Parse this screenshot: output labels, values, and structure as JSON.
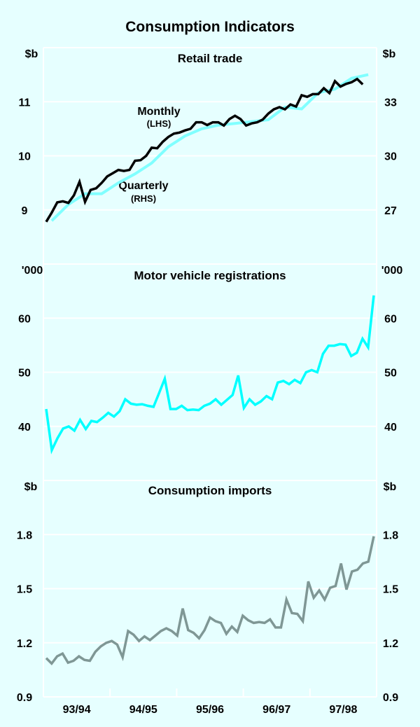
{
  "chart_data": {
    "type": "line",
    "title": "Consumption Indicators",
    "x_categories": [
      "93/94",
      "94/95",
      "95/96",
      "96/97",
      "97/98"
    ],
    "x_start": "Jul 1993",
    "x_frequency": "monthly",
    "grid": true,
    "panels": [
      {
        "title": "Retail trade",
        "left_unit": "$b",
        "right_unit": "$b",
        "left_ylim": [
          8,
          12
        ],
        "right_ylim": [
          24,
          36
        ],
        "left_ticks": [
          "9",
          "10",
          "11"
        ],
        "right_ticks": [
          "27",
          "30",
          "33"
        ],
        "annotations": [
          {
            "label": "Monthly",
            "sub": "(LHS)"
          },
          {
            "label": "Quarterly",
            "sub": "(RHS)"
          }
        ],
        "series": [
          {
            "name": "Monthly (LHS)",
            "axis": "left",
            "color": "#000000",
            "values": [
              8.78,
              8.95,
              9.14,
              9.16,
              9.13,
              9.27,
              9.52,
              9.15,
              9.37,
              9.4,
              9.5,
              9.62,
              9.68,
              9.74,
              9.72,
              9.74,
              9.91,
              9.92,
              10.0,
              10.15,
              10.14,
              10.26,
              10.35,
              10.41,
              10.43,
              10.47,
              10.5,
              10.62,
              10.62,
              10.57,
              10.62,
              10.62,
              10.56,
              10.68,
              10.74,
              10.68,
              10.56,
              10.6,
              10.62,
              10.67,
              10.78,
              10.86,
              10.9,
              10.86,
              10.95,
              10.91,
              11.12,
              11.09,
              11.14,
              11.14,
              11.25,
              11.16,
              11.38,
              11.28,
              11.33,
              11.36,
              11.42,
              11.32
            ]
          },
          {
            "name": "Quarterly (RHS)",
            "axis": "right",
            "color": "#80ffff",
            "quarter_values": [
              26.4,
              27.3,
              27.9,
              27.9,
              28.5,
              29.0,
              29.6,
              30.5,
              31.1,
              31.5,
              31.7,
              31.8,
              31.9,
              32.0,
              32.7,
              32.6,
              33.5,
              33.7,
              34.3,
              34.5
            ]
          }
        ]
      },
      {
        "title": "Motor vehicle registrations",
        "left_unit": "'000",
        "right_unit": "'000",
        "ylim": [
          30,
          70
        ],
        "ticks": [
          "40",
          "50",
          "60"
        ],
        "series": [
          {
            "name": "Motor vehicle registrations",
            "color": "#00ffff",
            "values": [
              43.2,
              35.6,
              37.8,
              39.6,
              40.0,
              39.2,
              41.2,
              39.5,
              41.0,
              40.8,
              41.6,
              42.5,
              41.8,
              42.8,
              45.0,
              44.2,
              44.0,
              44.1,
              43.8,
              43.6,
              46.2,
              48.8,
              43.2,
              43.2,
              43.8,
              43.0,
              43.1,
              43.0,
              43.8,
              44.2,
              45.0,
              44.0,
              44.9,
              45.8,
              49.4,
              43.4,
              45.0,
              44.0,
              44.6,
              45.6,
              45.0,
              48.1,
              48.4,
              47.8,
              48.6,
              48.0,
              50.0,
              50.4,
              50.0,
              53.4,
              54.9,
              54.9,
              55.2,
              55.1,
              53.0,
              53.6,
              56.2,
              54.6,
              64.2
            ]
          }
        ]
      },
      {
        "title": "Consumption imports",
        "left_unit": "$b",
        "right_unit": "$b",
        "ylim": [
          0.9,
          2.1
        ],
        "ticks": [
          "0.9",
          "1.2",
          "1.5",
          "1.8"
        ],
        "series": [
          {
            "name": "Consumption imports",
            "color": "#7f9795",
            "values": [
              1.115,
              1.085,
              1.125,
              1.14,
              1.09,
              1.1,
              1.125,
              1.105,
              1.1,
              1.15,
              1.18,
              1.2,
              1.21,
              1.19,
              1.12,
              1.265,
              1.245,
              1.21,
              1.235,
              1.215,
              1.24,
              1.265,
              1.28,
              1.265,
              1.24,
              1.39,
              1.27,
              1.255,
              1.225,
              1.27,
              1.34,
              1.32,
              1.31,
              1.25,
              1.29,
              1.26,
              1.35,
              1.325,
              1.31,
              1.315,
              1.31,
              1.33,
              1.285,
              1.285,
              1.44,
              1.365,
              1.36,
              1.32,
              1.54,
              1.45,
              1.49,
              1.44,
              1.505,
              1.515,
              1.64,
              1.495,
              1.595,
              1.605,
              1.64,
              1.65,
              1.79
            ]
          }
        ]
      }
    ]
  }
}
